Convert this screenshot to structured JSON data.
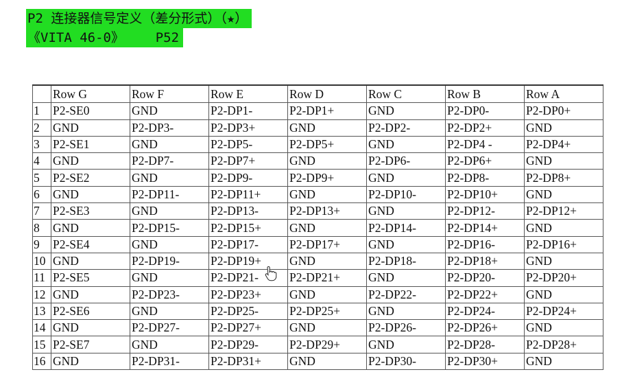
{
  "title": {
    "line1": "P2 连接器信号定义（差分形式）（★）",
    "line2": "《VITA 46-0》    P52"
  },
  "table": {
    "headers": [
      "",
      "Row G",
      "Row F",
      "Row E",
      "Row D",
      "Row C",
      "Row B",
      "Row A"
    ],
    "rows": [
      [
        "1",
        "P2-SE0",
        "GND",
        "P2-DP1-",
        "P2-DP1+",
        "GND",
        "P2-DP0-",
        "P2-DP0+"
      ],
      [
        "2",
        "GND",
        "P2-DP3-",
        "P2-DP3+",
        "GND",
        "P2-DP2-",
        "P2-DP2+",
        "GND"
      ],
      [
        "3",
        "P2-SE1",
        "GND",
        "P2-DP5-",
        "P2-DP5+",
        "GND",
        "P2-DP4 -",
        "P2-DP4+"
      ],
      [
        "4",
        "GND",
        "P2-DP7-",
        "P2-DP7+",
        "GND",
        "P2-DP6-",
        "P2-DP6+",
        "GND"
      ],
      [
        "5",
        "P2-SE2",
        "GND",
        "P2-DP9-",
        "P2-DP9+",
        "GND",
        "P2-DP8-",
        "P2-DP8+"
      ],
      [
        "6",
        "GND",
        "P2-DP11-",
        "P2-DP11+",
        "GND",
        "P2-DP10-",
        "P2-DP10+",
        "GND"
      ],
      [
        "7",
        "P2-SE3",
        "GND",
        "P2-DP13-",
        "P2-DP13+",
        "GND",
        "P2-DP12-",
        "P2-DP12+"
      ],
      [
        "8",
        "GND",
        "P2-DP15-",
        "P2-DP15+",
        "GND",
        "P2-DP14-",
        "P2-DP14+",
        "GND"
      ],
      [
        "9",
        "P2-SE4",
        "GND",
        "P2-DP17-",
        "P2-DP17+",
        "GND",
        "P2-DP16-",
        "P2-DP16+"
      ],
      [
        "10",
        "GND",
        "P2-DP19-",
        "P2-DP19+",
        "GND",
        "P2-DP18-",
        "P2-DP18+",
        "GND"
      ],
      [
        "11",
        "P2-SE5",
        "GND",
        "P2-DP21-",
        "P2-DP21+",
        "GND",
        "P2-DP20-",
        "P2-DP20+"
      ],
      [
        "12",
        "GND",
        "P2-DP23-",
        "P2-DP23+",
        "GND",
        "P2-DP22-",
        "P2-DP22+",
        "GND"
      ],
      [
        "13",
        "P2-SE6",
        "GND",
        "P2-DP25-",
        "P2-DP25+",
        "GND",
        "P2-DP24-",
        "P2-DP24+"
      ],
      [
        "14",
        "GND",
        "P2-DP27-",
        "P2-DP27+",
        "GND",
        "P2-DP26-",
        "P2-DP26+",
        "GND"
      ],
      [
        "15",
        "P2-SE7",
        "GND",
        "P2-DP29-",
        "P2-DP29+",
        "GND",
        "P2-DP28-",
        "P2-DP28+"
      ],
      [
        "16",
        "GND",
        "P2-DP31-",
        "P2-DP31+",
        "GND",
        "P2-DP30-",
        "P2-DP30+",
        "GND"
      ]
    ]
  },
  "colors": {
    "title_highlight": "#22dd22"
  },
  "icons": {
    "cursor": "hand-pointer-icon"
  }
}
